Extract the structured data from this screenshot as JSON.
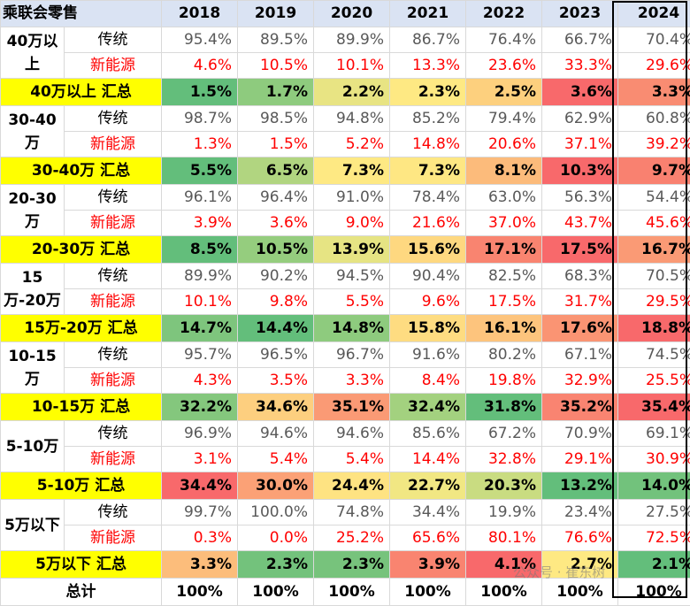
{
  "table": {
    "title": "乘联会零售",
    "years": [
      "2018",
      "2019",
      "2020",
      "2021",
      "2022",
      "2023",
      "2024"
    ],
    "traditional_label": "传统",
    "nev_label": "新能源",
    "segments": [
      {
        "label": "40万以上",
        "traditional": [
          "95.4%",
          "89.5%",
          "89.9%",
          "86.7%",
          "76.4%",
          "66.7%",
          "70.4%"
        ],
        "nev": [
          "4.6%",
          "10.5%",
          "10.1%",
          "13.3%",
          "23.6%",
          "33.3%",
          "29.6%"
        ],
        "summary_label": "40万以上 汇总",
        "summary": [
          "1.5%",
          "1.7%",
          "2.2%",
          "2.3%",
          "2.5%",
          "3.6%",
          "3.3%"
        ],
        "summary_colors": [
          "#63be7b",
          "#8ecb7e",
          "#e8e483",
          "#fee983",
          "#fdd07e",
          "#f8696b",
          "#f98c72"
        ]
      },
      {
        "label": "30-40万",
        "traditional": [
          "98.7%",
          "98.5%",
          "94.8%",
          "85.2%",
          "79.4%",
          "62.9%",
          "60.8%"
        ],
        "nev": [
          "1.3%",
          "1.5%",
          "5.2%",
          "14.8%",
          "20.6%",
          "37.1%",
          "39.2%"
        ],
        "summary_label": "30-40万 汇总",
        "summary": [
          "5.5%",
          "6.5%",
          "7.3%",
          "7.3%",
          "8.1%",
          "10.3%",
          "9.7%"
        ],
        "summary_colors": [
          "#63be7b",
          "#b1d580",
          "#fee983",
          "#fee783",
          "#fcbb7b",
          "#f8696b",
          "#f98170"
        ]
      },
      {
        "label": "20-30万",
        "traditional": [
          "96.1%",
          "96.4%",
          "91.0%",
          "78.4%",
          "63.0%",
          "56.3%",
          "54.4%"
        ],
        "nev": [
          "3.9%",
          "3.6%",
          "9.0%",
          "21.6%",
          "37.0%",
          "43.7%",
          "45.6%"
        ],
        "summary_label": "20-30万 汇总",
        "summary": [
          "8.5%",
          "10.5%",
          "13.9%",
          "15.6%",
          "17.1%",
          "17.5%",
          "16.7%"
        ],
        "summary_colors": [
          "#63be7b",
          "#95cd7e",
          "#e6e483",
          "#fed880",
          "#f98470",
          "#f8696b",
          "#fa9a75"
        ]
      },
      {
        "label": "15万-20万",
        "traditional": [
          "89.9%",
          "90.2%",
          "94.5%",
          "90.4%",
          "82.5%",
          "68.3%",
          "70.5%"
        ],
        "nev": [
          "10.1%",
          "9.8%",
          "5.5%",
          "9.6%",
          "17.5%",
          "31.7%",
          "29.5%"
        ],
        "summary_label": "15万-20万 汇总",
        "summary": [
          "14.7%",
          "14.4%",
          "14.8%",
          "15.8%",
          "16.1%",
          "17.6%",
          "18.8%"
        ],
        "summary_colors": [
          "#7ec57d",
          "#63be7b",
          "#8ecb7e",
          "#fedc81",
          "#fdc47d",
          "#fa9473",
          "#f8696b"
        ]
      },
      {
        "label": "10-15万",
        "traditional": [
          "95.7%",
          "96.5%",
          "96.7%",
          "91.6%",
          "80.2%",
          "67.1%",
          "74.5%"
        ],
        "nev": [
          "4.3%",
          "3.5%",
          "3.3%",
          "8.4%",
          "19.8%",
          "32.9%",
          "25.5%"
        ],
        "summary_label": "10-15万 汇总",
        "summary": [
          "32.2%",
          "34.6%",
          "35.1%",
          "32.4%",
          "31.8%",
          "35.2%",
          "35.4%"
        ],
        "summary_colors": [
          "#84c77d",
          "#fdcf7f",
          "#fa9a75",
          "#a3d17f",
          "#63be7b",
          "#f98471",
          "#f8696b"
        ]
      },
      {
        "label": "5-10万",
        "traditional": [
          "96.9%",
          "94.6%",
          "94.6%",
          "85.6%",
          "67.2%",
          "70.9%",
          "69.1%"
        ],
        "nev": [
          "3.1%",
          "5.4%",
          "5.4%",
          "14.4%",
          "32.8%",
          "29.1%",
          "30.9%"
        ],
        "summary_label": "5-10万 汇总",
        "summary": [
          "34.4%",
          "30.0%",
          "24.4%",
          "22.7%",
          "20.3%",
          "13.2%",
          "14.0%"
        ],
        "summary_colors": [
          "#f8696b",
          "#fba176",
          "#fee382",
          "#f1e783",
          "#c9dc81",
          "#63be7b",
          "#72c27c"
        ]
      },
      {
        "label": "5万以下",
        "traditional": [
          "99.7%",
          "100.0%",
          "74.8%",
          "34.4%",
          "19.9%",
          "23.4%",
          "27.5%"
        ],
        "nev": [
          "0.3%",
          "0.0%",
          "25.2%",
          "65.6%",
          "80.1%",
          "76.6%",
          "72.5%"
        ],
        "summary_label": "5万以下 汇总",
        "summary": [
          "3.3%",
          "2.3%",
          "2.3%",
          "3.9%",
          "4.1%",
          "2.7%",
          "2.1%"
        ],
        "summary_colors": [
          "#fcbd7b",
          "#73c27c",
          "#77c37c",
          "#f98470",
          "#f8696b",
          "#fee983",
          "#63be7b"
        ]
      }
    ],
    "total_label": "总计",
    "total": [
      "100%",
      "100%",
      "100%",
      "100%",
      "100%",
      "100%",
      "100%"
    ]
  },
  "watermark": "公众号 · 崔东树"
}
